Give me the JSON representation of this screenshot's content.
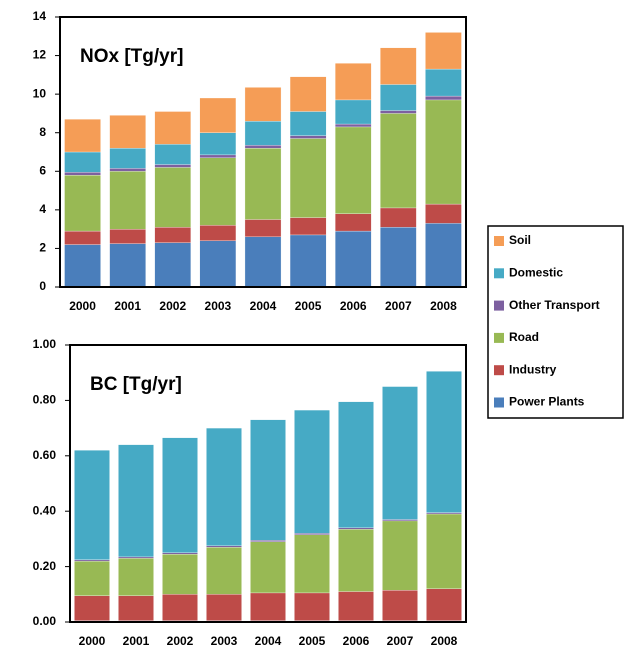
{
  "chart_data": [
    {
      "type": "bar",
      "stacked": true,
      "title": "NOx [Tg/yr]",
      "categories": [
        "2000",
        "2001",
        "2002",
        "2003",
        "2004",
        "2005",
        "2006",
        "2007",
        "2008"
      ],
      "ylim": [
        0,
        14
      ],
      "yticks": [
        0,
        2,
        4,
        6,
        8,
        10,
        12,
        14
      ],
      "series": [
        {
          "name": "Power Plants",
          "color": "#4a7ebb",
          "values": [
            2.2,
            2.25,
            2.3,
            2.4,
            2.6,
            2.7,
            2.9,
            3.1,
            3.3
          ]
        },
        {
          "name": "Industry",
          "color": "#be4b48",
          "values": [
            0.7,
            0.75,
            0.8,
            0.8,
            0.9,
            0.9,
            0.9,
            1.0,
            1.0
          ]
        },
        {
          "name": "Road",
          "color": "#98b954",
          "values": [
            2.9,
            3.0,
            3.1,
            3.5,
            3.7,
            4.1,
            4.5,
            4.9,
            5.4
          ]
        },
        {
          "name": "Other Transport",
          "color": "#7d60a0",
          "values": [
            0.15,
            0.15,
            0.15,
            0.15,
            0.15,
            0.15,
            0.15,
            0.15,
            0.2
          ]
        },
        {
          "name": "Domestic",
          "color": "#46aac5",
          "values": [
            1.05,
            1.05,
            1.05,
            1.15,
            1.25,
            1.25,
            1.25,
            1.35,
            1.4
          ]
        },
        {
          "name": "Soil",
          "color": "#f59d56",
          "values": [
            1.7,
            1.7,
            1.7,
            1.8,
            1.75,
            1.8,
            1.9,
            1.9,
            1.9
          ]
        }
      ]
    },
    {
      "type": "bar",
      "stacked": true,
      "title": "BC [Tg/yr]",
      "categories": [
        "2000",
        "2001",
        "2002",
        "2003",
        "2004",
        "2005",
        "2006",
        "2007",
        "2008"
      ],
      "ylim": [
        0,
        1
      ],
      "yticks": [
        {
          "value": 0,
          "label": "0.00"
        },
        {
          "value": 0.2,
          "label": "0.20"
        },
        {
          "value": 0.4,
          "label": "0.40"
        },
        {
          "value": 0.6,
          "label": "0.60"
        },
        {
          "value": 0.8,
          "label": "0.80"
        },
        {
          "value": 1,
          "label": "1.00"
        }
      ],
      "series": [
        {
          "color": "#4a7ebb",
          "values": [
            0.005,
            0.005,
            0.005,
            0.005,
            0.005,
            0.005,
            0.005,
            0.005,
            0.005
          ]
        },
        {
          "color": "#be4b48",
          "values": [
            0.09,
            0.09,
            0.095,
            0.095,
            0.1,
            0.1,
            0.105,
            0.11,
            0.115
          ]
        },
        {
          "color": "#98b954",
          "values": [
            0.125,
            0.135,
            0.145,
            0.17,
            0.185,
            0.21,
            0.225,
            0.25,
            0.27
          ]
        },
        {
          "color": "#7d60a0",
          "values": [
            0.005,
            0.005,
            0.005,
            0.005,
            0.005,
            0.005,
            0.005,
            0.005,
            0.005
          ]
        },
        {
          "color": "#46aac5",
          "values": [
            0.395,
            0.405,
            0.415,
            0.425,
            0.435,
            0.445,
            0.455,
            0.48,
            0.51
          ]
        },
        {
          "color": "#f59d56",
          "values": [
            0,
            0,
            0,
            0,
            0,
            0,
            0,
            0,
            0
          ]
        }
      ]
    }
  ]
}
